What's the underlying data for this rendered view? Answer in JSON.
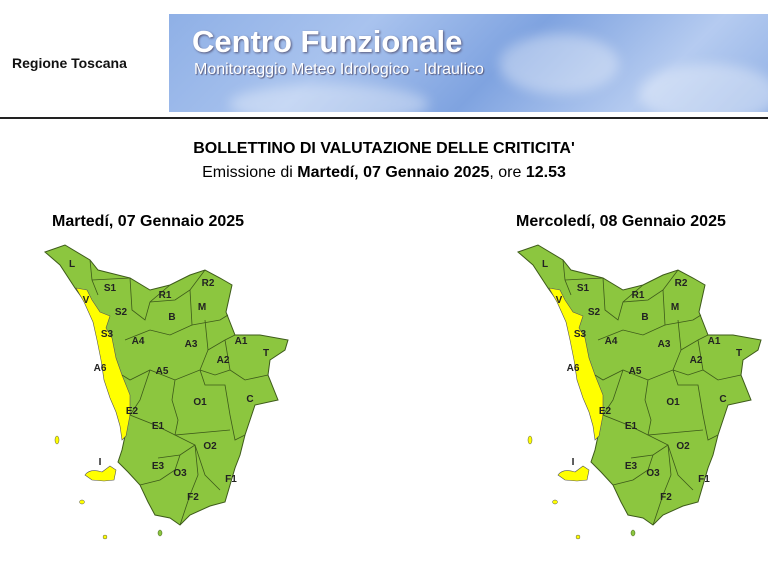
{
  "header": {
    "region": "Regione Toscana",
    "banner_title": "Centro Funzionale",
    "banner_subtitle": "Monitoraggio Meteo Idrologico - Idraulico"
  },
  "bulletin": {
    "title": "BOLLETTINO DI VALUTAZIONE DELLE CRITICITA'",
    "emission_prefix": "Emissione di ",
    "emission_date": "Martedí, 07 Gennaio 2025",
    "emission_mid": ", ore ",
    "emission_time": "12.53"
  },
  "colors": {
    "green": "#8cc63f",
    "yellow": "#ffff00"
  },
  "maps": [
    {
      "date": "Martedí, 07 Gennaio 2025",
      "yellow_zones": [
        "V",
        "S3",
        "A6",
        "E2",
        "I"
      ]
    },
    {
      "date": "Mercoledí, 08 Gennaio 2025",
      "yellow_zones": [
        "V",
        "S3",
        "A6",
        "E2",
        "I"
      ]
    }
  ],
  "zones": [
    "L",
    "S1",
    "V",
    "R1",
    "R2",
    "S2",
    "B",
    "M",
    "S3",
    "A4",
    "A3",
    "A1",
    "T",
    "A2",
    "A6",
    "A5",
    "C",
    "O1",
    "E2",
    "E1",
    "O2",
    "I",
    "E3",
    "O3",
    "F1",
    "F2"
  ]
}
